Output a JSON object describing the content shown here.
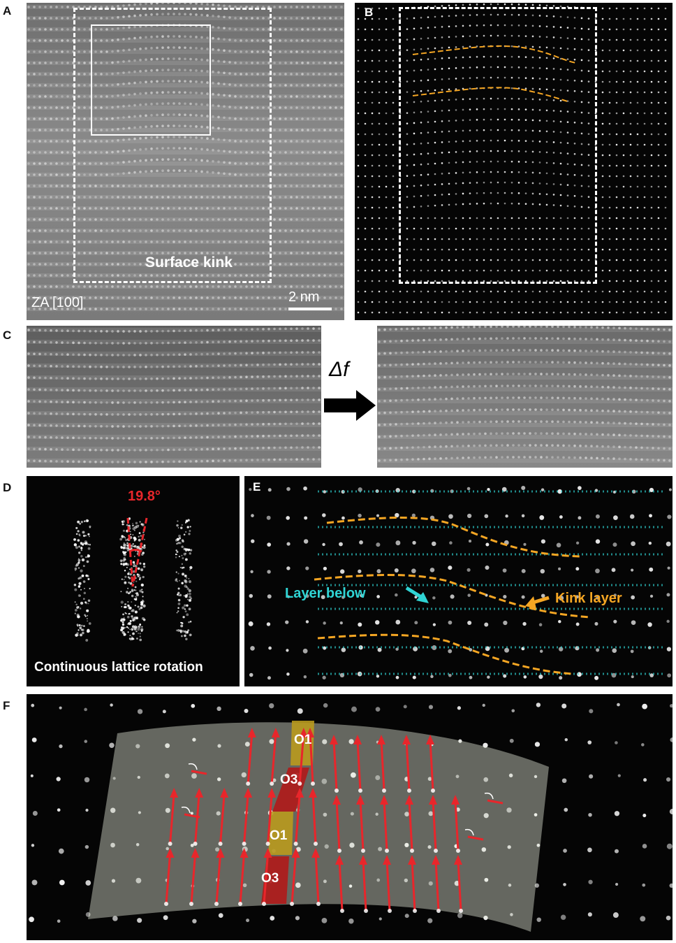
{
  "panels": {
    "A": {
      "letter": "A",
      "label_kink": "Surface kink",
      "label_za": "ZA [100]",
      "scale_bar": "2 nm"
    },
    "B": {
      "letter": "B"
    },
    "C": {
      "letter": "C",
      "arrow_label": "Δf"
    },
    "D": {
      "letter": "D",
      "angle": "19.8°",
      "caption": "Continuous lattice rotation"
    },
    "E": {
      "letter": "E",
      "layer_below": "Layer below",
      "kink_layer": "Kink layer"
    },
    "F": {
      "letter": "F",
      "labels": [
        "O1",
        "O3",
        "O1",
        "O3"
      ]
    }
  },
  "colors": {
    "kink_orange": "#f5a623",
    "layer_cyan": "#2fd4d4",
    "arrow_red": "#e8262b",
    "angle_red": "#e8262b",
    "o1_fill": "#b99a1e",
    "o3_fill": "#b01a1a"
  }
}
